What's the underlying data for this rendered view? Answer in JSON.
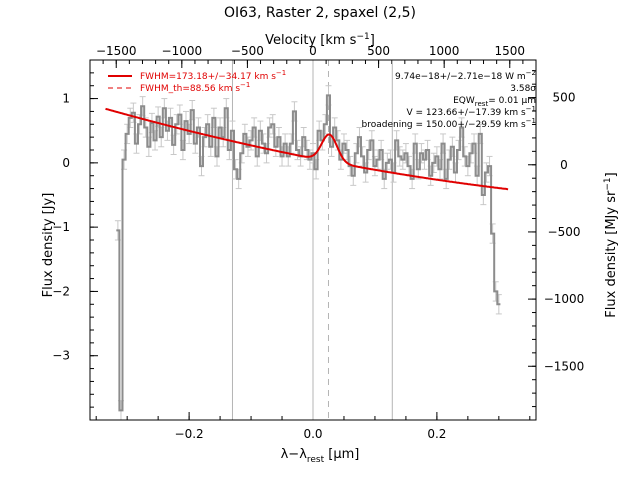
{
  "chart_data": {
    "type": "line",
    "title": "OI63, Raster 2, spaxel (2,5)",
    "xlabel_main": "λ−λ",
    "xlabel_sub": "rest",
    "xlabel_unit": " [μm]",
    "ylabel_left": "Flux density [Jy]",
    "ylabel_right": "Flux density [MJy sr",
    "ylabel_right_sup": "−1",
    "ylabel_right_close": "]",
    "top_axis_label": "Velocity [km s",
    "top_axis_label_sup": "−1",
    "top_axis_label_close": "]",
    "xlim": [
      -0.36,
      0.36
    ],
    "ylim": [
      -4.0,
      1.6
    ],
    "right_ylim": [
      -1900,
      780
    ],
    "top_axis_range": [
      -1700,
      1700
    ],
    "x_ticks": [
      -0.2,
      0.0,
      0.2
    ],
    "x_tick_labels": [
      "−0.2",
      "0.0",
      "0.2"
    ],
    "y_ticks": [
      -3,
      -2,
      -1,
      0,
      1
    ],
    "y_tick_labels": [
      "−3",
      "−2",
      "−1",
      "0",
      "1"
    ],
    "right_ticks": [
      -1500,
      -1000,
      -500,
      0,
      500
    ],
    "right_tick_labels": [
      "−1500",
      "−1000",
      "−500",
      "0",
      "500"
    ],
    "top_ticks": [
      -1500,
      -1000,
      -500,
      0,
      500,
      1000,
      1500
    ],
    "top_tick_labels": [
      "−1500",
      "−1000",
      "−500",
      "0",
      "500",
      "1000",
      "1500"
    ],
    "vertical_lines_solid": [
      -0.13,
      0.0,
      0.128
    ],
    "vertical_line_dashed": 0.025,
    "legend": {
      "fit_label": "FWHM=173.18+/−34.17 km s",
      "fit_sup": "−1",
      "inst_label": "FWHM_th=88.56 km s",
      "inst_sup": "−1",
      "placement": "top-left"
    },
    "annotations": [
      {
        "text": "9.74e−18+/−2.71e−18 W m",
        "sup": "−2"
      },
      {
        "text": "3.58σ",
        "sup": ""
      },
      {
        "text": "EQW",
        "sub": "rest",
        "text2": "= 0.01 μm"
      },
      {
        "text": "V = 123.66+/−17.39 km s",
        "sup": "−1"
      },
      {
        "text": "broadening = 150.00+/−29.59 km s",
        "sup": "−1"
      }
    ],
    "colors": {
      "data": "#8c8c8c",
      "error_bars": "#c8c8c8",
      "fit": "#e00000",
      "vlines": "#b4b4b4"
    },
    "series": [
      {
        "values": [
          [
            -0.315,
            -1.05
          ],
          [
            -0.31,
            -3.85
          ],
          [
            -0.305,
            0.05
          ],
          [
            -0.3,
            0.45
          ],
          [
            -0.295,
            0.7
          ],
          [
            -0.29,
            0.78
          ],
          [
            -0.285,
            0.3
          ],
          [
            -0.28,
            0.6
          ],
          [
            -0.275,
            0.88
          ],
          [
            -0.27,
            0.55
          ],
          [
            -0.265,
            0.25
          ],
          [
            -0.26,
            0.62
          ],
          [
            -0.255,
            0.35
          ],
          [
            -0.25,
            0.72
          ],
          [
            -0.245,
            0.4
          ],
          [
            -0.24,
            0.85
          ],
          [
            -0.235,
            0.5
          ],
          [
            -0.23,
            0.7
          ],
          [
            -0.225,
            0.28
          ],
          [
            -0.22,
            0.6
          ],
          [
            -0.215,
            0.75
          ],
          [
            -0.21,
            0.2
          ],
          [
            -0.205,
            0.65
          ],
          [
            -0.2,
            0.45
          ],
          [
            -0.195,
            0.82
          ],
          [
            -0.19,
            0.3
          ],
          [
            -0.185,
            0.55
          ],
          [
            -0.18,
            -0.05
          ],
          [
            -0.175,
            0.4
          ],
          [
            -0.17,
            0.6
          ],
          [
            -0.165,
            0.25
          ],
          [
            -0.16,
            0.7
          ],
          [
            -0.155,
            0.1
          ],
          [
            -0.15,
            0.55
          ],
          [
            -0.145,
            0.4
          ],
          [
            -0.14,
            0.85
          ],
          [
            -0.135,
            0.2
          ],
          [
            -0.13,
            0.5
          ],
          [
            -0.125,
            -0.1
          ],
          [
            -0.12,
            -0.25
          ],
          [
            -0.115,
            0.15
          ],
          [
            -0.11,
            0.45
          ],
          [
            -0.105,
            0.25
          ],
          [
            -0.1,
            0.35
          ],
          [
            -0.095,
            0.55
          ],
          [
            -0.09,
            0.1
          ],
          [
            -0.085,
            0.5
          ],
          [
            -0.08,
            0.3
          ],
          [
            -0.075,
            0.15
          ],
          [
            -0.07,
            0.55
          ],
          [
            -0.065,
            0.6
          ],
          [
            -0.06,
            0.25
          ],
          [
            -0.055,
            0.4
          ],
          [
            -0.05,
            0.1
          ],
          [
            -0.045,
            0.3
          ],
          [
            -0.04,
            0.1
          ],
          [
            -0.035,
            0.3
          ],
          [
            -0.03,
            0.8
          ],
          [
            -0.025,
            0.2
          ],
          [
            -0.02,
            0.1
          ],
          [
            -0.015,
            0.4
          ],
          [
            -0.01,
            0.2
          ],
          [
            -0.005,
            0.05
          ],
          [
            0.0,
            0.15
          ],
          [
            0.005,
            -0.1
          ],
          [
            0.01,
            0.5
          ],
          [
            0.015,
            0.35
          ],
          [
            0.02,
            0.6
          ],
          [
            0.025,
            1.05
          ],
          [
            0.03,
            0.25
          ],
          [
            0.035,
            0.55
          ],
          [
            0.04,
            0.35
          ],
          [
            0.045,
            0.05
          ],
          [
            0.05,
            0.3
          ],
          [
            0.055,
            0.2
          ],
          [
            0.06,
            -0.05
          ],
          [
            0.065,
            -0.2
          ],
          [
            0.07,
            0.15
          ],
          [
            0.075,
            0.4
          ],
          [
            0.08,
            0.1
          ],
          [
            0.085,
            -0.15
          ],
          [
            0.09,
            0.2
          ],
          [
            0.095,
            0.35
          ],
          [
            0.1,
            -0.05
          ],
          [
            0.105,
            0.05
          ],
          [
            0.11,
            0.2
          ],
          [
            0.115,
            -0.25
          ],
          [
            0.12,
            0.0
          ],
          [
            0.125,
            0.05
          ],
          [
            0.13,
            -0.15
          ],
          [
            0.135,
            0.35
          ],
          [
            0.14,
            0.1
          ],
          [
            0.145,
            0.05
          ],
          [
            0.15,
            0.15
          ],
          [
            0.155,
            -0.05
          ],
          [
            0.16,
            -0.25
          ],
          [
            0.165,
            0.3
          ],
          [
            0.17,
            -0.1
          ],
          [
            0.175,
            0.15
          ],
          [
            0.18,
            0.05
          ],
          [
            0.185,
            0.2
          ],
          [
            0.19,
            -0.2
          ],
          [
            0.195,
            0.0
          ],
          [
            0.2,
            0.1
          ],
          [
            0.205,
            -0.1
          ],
          [
            0.21,
            0.3
          ],
          [
            0.215,
            -0.25
          ],
          [
            0.22,
            0.05
          ],
          [
            0.225,
            0.25
          ],
          [
            0.23,
            -0.15
          ],
          [
            0.235,
            0.2
          ],
          [
            0.24,
            0.55
          ],
          [
            0.245,
            0.1
          ],
          [
            0.25,
            -0.05
          ],
          [
            0.255,
            0.15
          ],
          [
            0.26,
            0.3
          ],
          [
            0.265,
            -0.2
          ],
          [
            0.27,
            0.45
          ],
          [
            0.275,
            -0.5
          ],
          [
            0.28,
            -0.15
          ],
          [
            0.285,
            -0.05
          ],
          [
            0.29,
            -1.1
          ],
          [
            0.295,
            -2.0
          ],
          [
            0.3,
            -2.2
          ]
        ],
        "errors": 0.15
      }
    ],
    "fit_line": {
      "continuum": {
        "a": 0.07,
        "b": -1.9,
        "c": 1.2
      },
      "gaussian": {
        "amp": 0.42,
        "center": 0.0265,
        "sigma": 0.0125
      },
      "x_range": [
        -0.335,
        0.315
      ]
    }
  }
}
